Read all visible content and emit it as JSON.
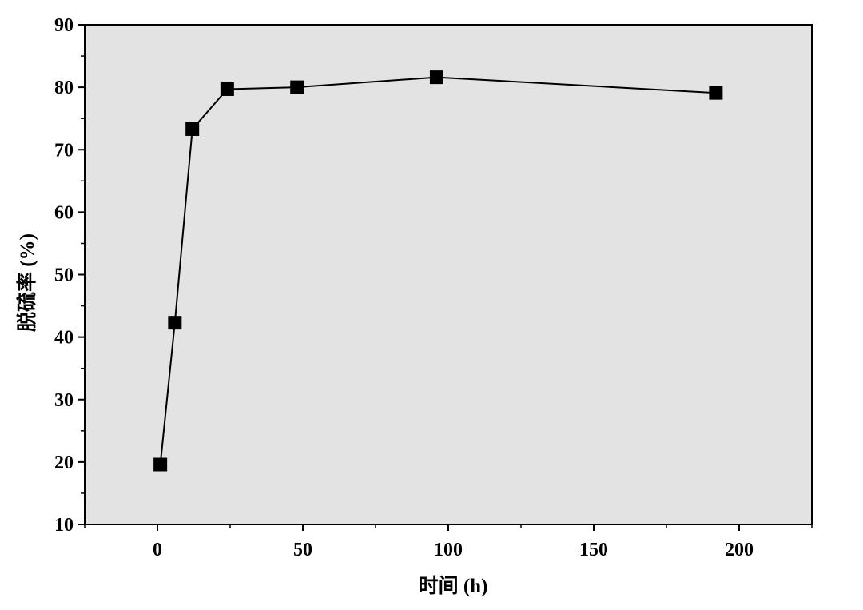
{
  "chart_data": {
    "type": "line",
    "title": "",
    "xlabel": "时间 (h)",
    "ylabel": "脱硫率 (%)",
    "xlim": [
      -25,
      225
    ],
    "ylim": [
      10,
      90
    ],
    "x_ticks": [
      0,
      50,
      100,
      150,
      200
    ],
    "y_ticks": [
      10,
      20,
      30,
      40,
      50,
      60,
      70,
      80,
      90
    ],
    "x_tick_labels": [
      "0",
      "50",
      "100",
      "150",
      "200"
    ],
    "y_tick_labels": [
      "10",
      "20",
      "30",
      "40",
      "50",
      "60",
      "70",
      "80",
      "90"
    ],
    "grid": false,
    "legend": "none",
    "series": [
      {
        "x": [
          1,
          6,
          12,
          24,
          48,
          96,
          192
        ],
        "y": [
          19.6,
          42.3,
          73.3,
          79.7,
          80.0,
          81.6,
          79.1
        ],
        "marker": "square",
        "color": "#000000"
      }
    ],
    "colors": {
      "plot_background": "#e3e3e3",
      "axis": "#000000",
      "series": "#000000"
    }
  }
}
